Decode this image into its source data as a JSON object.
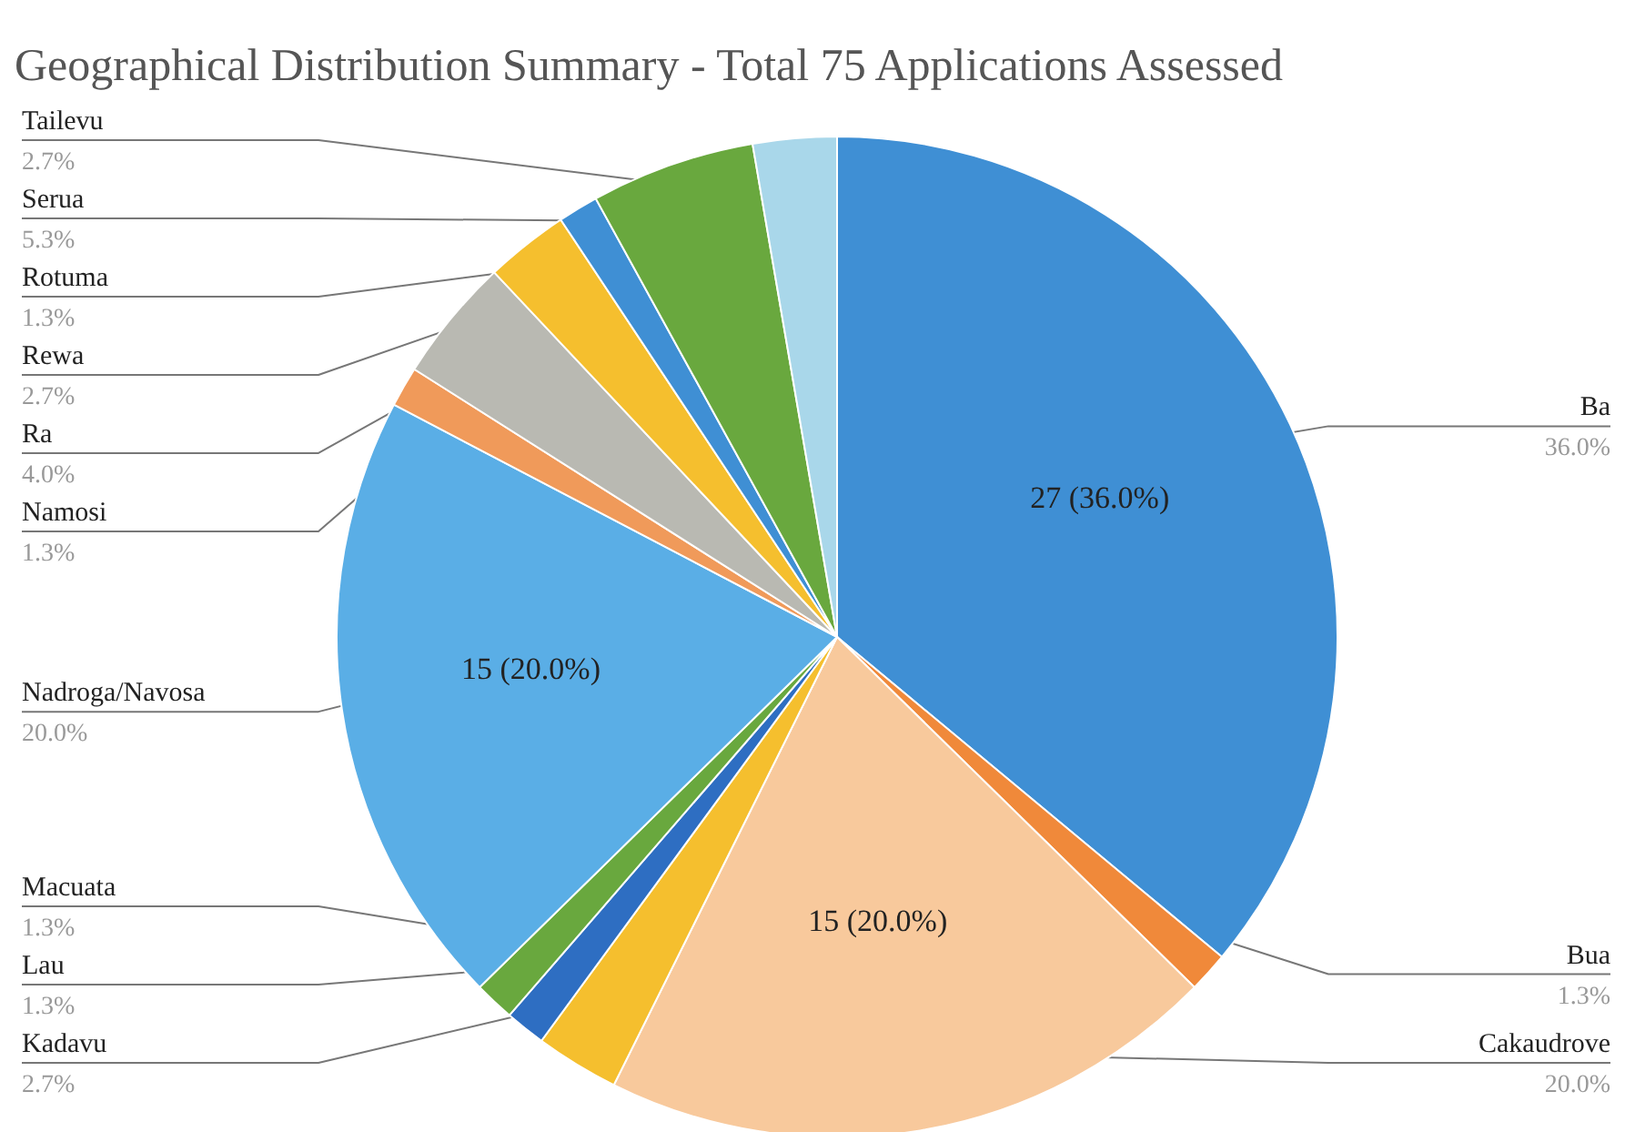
{
  "chart_data": {
    "type": "pie",
    "title": "Geographical Distribution Summary - Total 75 Applications Assessed",
    "categories": [
      "Ba",
      "Bua",
      "Cakaudrove",
      "Kadavu",
      "Lau",
      "Macuata",
      "Nadroga/Navosa",
      "Namosi",
      "Ra",
      "Rewa",
      "Rotuma",
      "Serua",
      "Tailevu"
    ],
    "values": [
      36.0,
      1.3,
      20.0,
      2.7,
      1.3,
      1.3,
      20.0,
      1.3,
      4.0,
      2.7,
      1.3,
      5.3,
      2.7
    ],
    "value_labels": [
      "36.0%",
      "1.3%",
      "20.0%",
      "2.7%",
      "1.3%",
      "1.3%",
      "20.0%",
      "1.3%",
      "4.0%",
      "2.7%",
      "1.3%",
      "5.3%",
      "2.7%"
    ],
    "colors": [
      "#3f8fd4",
      "#f0893a",
      "#f8c99c",
      "#f5bf2e",
      "#2e6ec2",
      "#69a83e",
      "#5aaee6",
      "#f09a5a",
      "#b9b9b2",
      "#f5bf2e",
      "#3f8fd4",
      "#69a83e",
      "#a9d7ea"
    ],
    "annotations": [
      {
        "text": "27 (36.0%)",
        "x": "Ba"
      },
      {
        "text": "15 (20.0%)",
        "x": "Cakaudrove"
      },
      {
        "text": "15 (20.0%)",
        "x": "Nadroga/Navosa"
      }
    ]
  }
}
